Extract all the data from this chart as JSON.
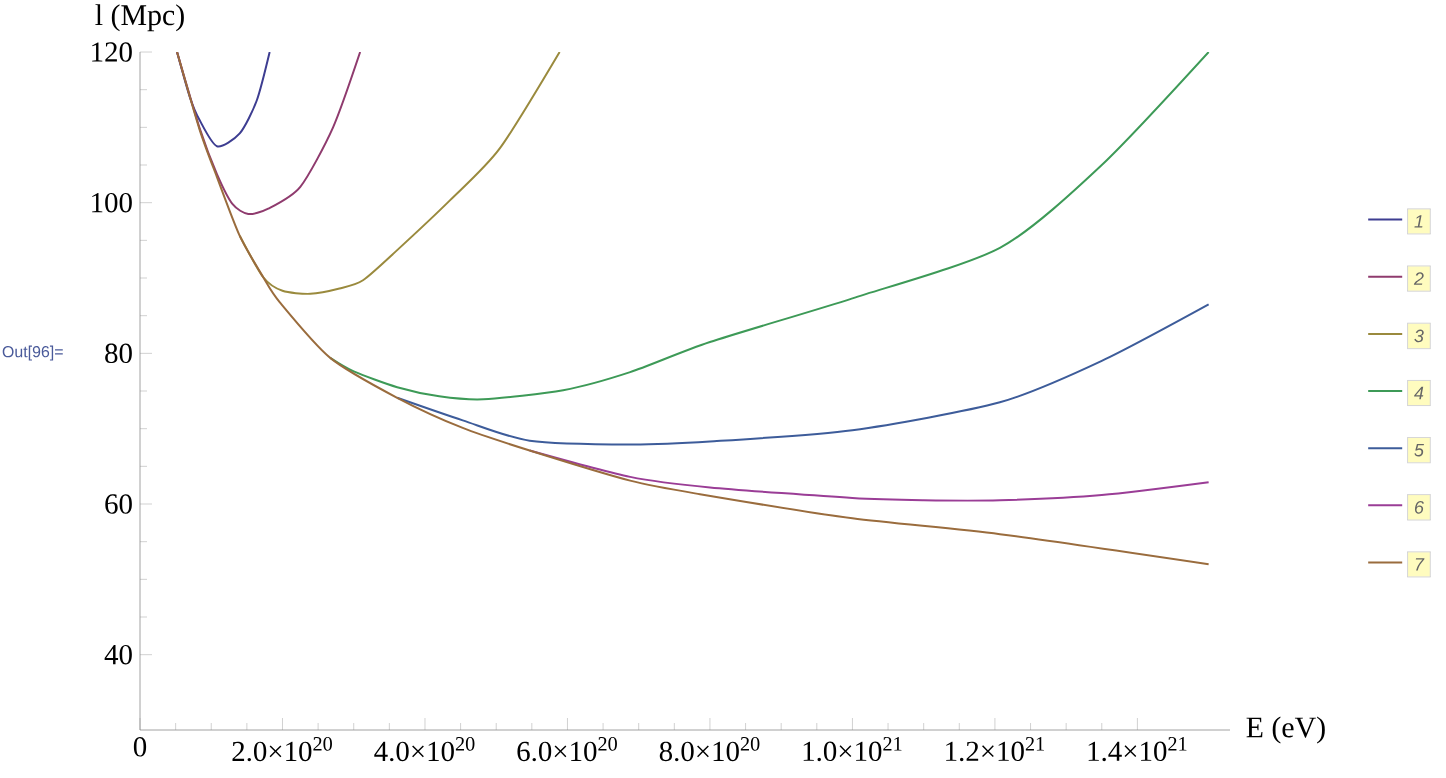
{
  "chart_data": {
    "type": "line",
    "xlabel": "E (eV)",
    "ylabel": "l (Mpc)",
    "annotations": [
      "Out[96]="
    ],
    "xlim": [
      0,
      1.53e+21
    ],
    "ylim": [
      30,
      120
    ],
    "xticks": [
      0,
      {
        "value": 2e+20,
        "label": "2.0×10$^{20}$"
      },
      {
        "value": 4e+20,
        "label": "4.0×10$^{20}$"
      },
      {
        "value": 6e+20,
        "label": "6.0×10$^{20}$"
      },
      {
        "value": 8e+20,
        "label": "8.0×10$^{20}$"
      },
      {
        "value": 1e+21,
        "label": "1.0×10$^{21}$"
      },
      {
        "value": 1.2e+21,
        "label": "1.2×10$^{21}$"
      },
      {
        "value": 1.4e+21,
        "label": "1.4×10$^{21}$"
      }
    ],
    "yticks": [
      40,
      60,
      80,
      100,
      120
    ],
    "legend": "right",
    "series": [
      {
        "name": "1",
        "color": "#3d3d91",
        "x": [
          5.2e+19,
          7e+19,
          8.4e+19,
          1.08e+20,
          1.4e+20,
          1.64e+20,
          1.82e+20
        ],
        "values": [
          120,
          114.0,
          110.9,
          107.5,
          109.2,
          113.6,
          120
        ]
      },
      {
        "name": "2",
        "color": "#8f3b6e",
        "x": [
          5.2e+19,
          8.4e+19,
          1.08e+20,
          1.3e+20,
          1.52e+20,
          1.8e+20,
          2.25e+20,
          2.71e+20,
          3.09e+20
        ],
        "values": [
          120,
          109.8,
          103.8,
          99.8,
          98.5,
          99.2,
          102.1,
          110.0,
          120
        ]
      },
      {
        "name": "3",
        "color": "#9a8a3d",
        "x": [
          1.4e+20,
          1.73e+20,
          2e+20,
          2.39e+20,
          2.8e+20,
          3.13e+20,
          3.61e+20,
          4.35e+20,
          5.05e+20,
          5.89e+20
        ],
        "values": [
          95.6,
          90.1,
          88.3,
          87.9,
          88.6,
          89.7,
          93.7,
          100.3,
          107.2,
          120
        ]
      },
      {
        "name": "4",
        "color": "#3d9a57",
        "x": [
          2.67e+20,
          3e+20,
          3.61e+20,
          4.2e+20,
          4.82e+20,
          5.94e+20,
          6.88e+20,
          8e+20,
          1e+21,
          1.207e+21,
          1.35e+21,
          1.5e+21
        ],
        "values": [
          79.4,
          77.6,
          75.5,
          74.3,
          73.9,
          75.1,
          77.5,
          81.5,
          87.3,
          94.0,
          105,
          120
        ]
      },
      {
        "name": "5",
        "color": "#3d5c9a",
        "x": [
          3.61e+20,
          4.53e+20,
          5.47e+20,
          6.88e+20,
          8e+20,
          1e+21,
          1.207e+21,
          1.35e+21,
          1.5e+21
        ],
        "values": [
          74.1,
          71.1,
          68.4,
          67.9,
          68.3,
          69.8,
          73.5,
          79.0,
          86.5
        ]
      },
      {
        "name": "6",
        "color": "#9a3d96",
        "x": [
          5.47e+20,
          6.88e+20,
          8e+20,
          1e+21,
          1.1e+21,
          1.207e+21,
          1.35e+21,
          1.5e+21
        ],
        "values": [
          67.1,
          63.6,
          62.2,
          60.8,
          60.5,
          60.5,
          61.2,
          62.9
        ]
      },
      {
        "name": "7",
        "color": "#9a6c3d",
        "x": [
          5.2e+19,
          8.4e+19,
          1.08e+20,
          1.4e+20,
          1.73e+20,
          1.96e+20,
          2.67e+20,
          3.61e+20,
          4.53e+20,
          5.47e+20,
          6.88e+20,
          7.86e+20,
          1e+21,
          1.207e+21,
          1.5e+21
        ],
        "values": [
          120,
          109.6,
          103.4,
          95.6,
          90.1,
          86.8,
          79.4,
          74.1,
          70.1,
          67.1,
          63.1,
          61.3,
          58.1,
          56.0,
          52.0
        ]
      }
    ]
  }
}
